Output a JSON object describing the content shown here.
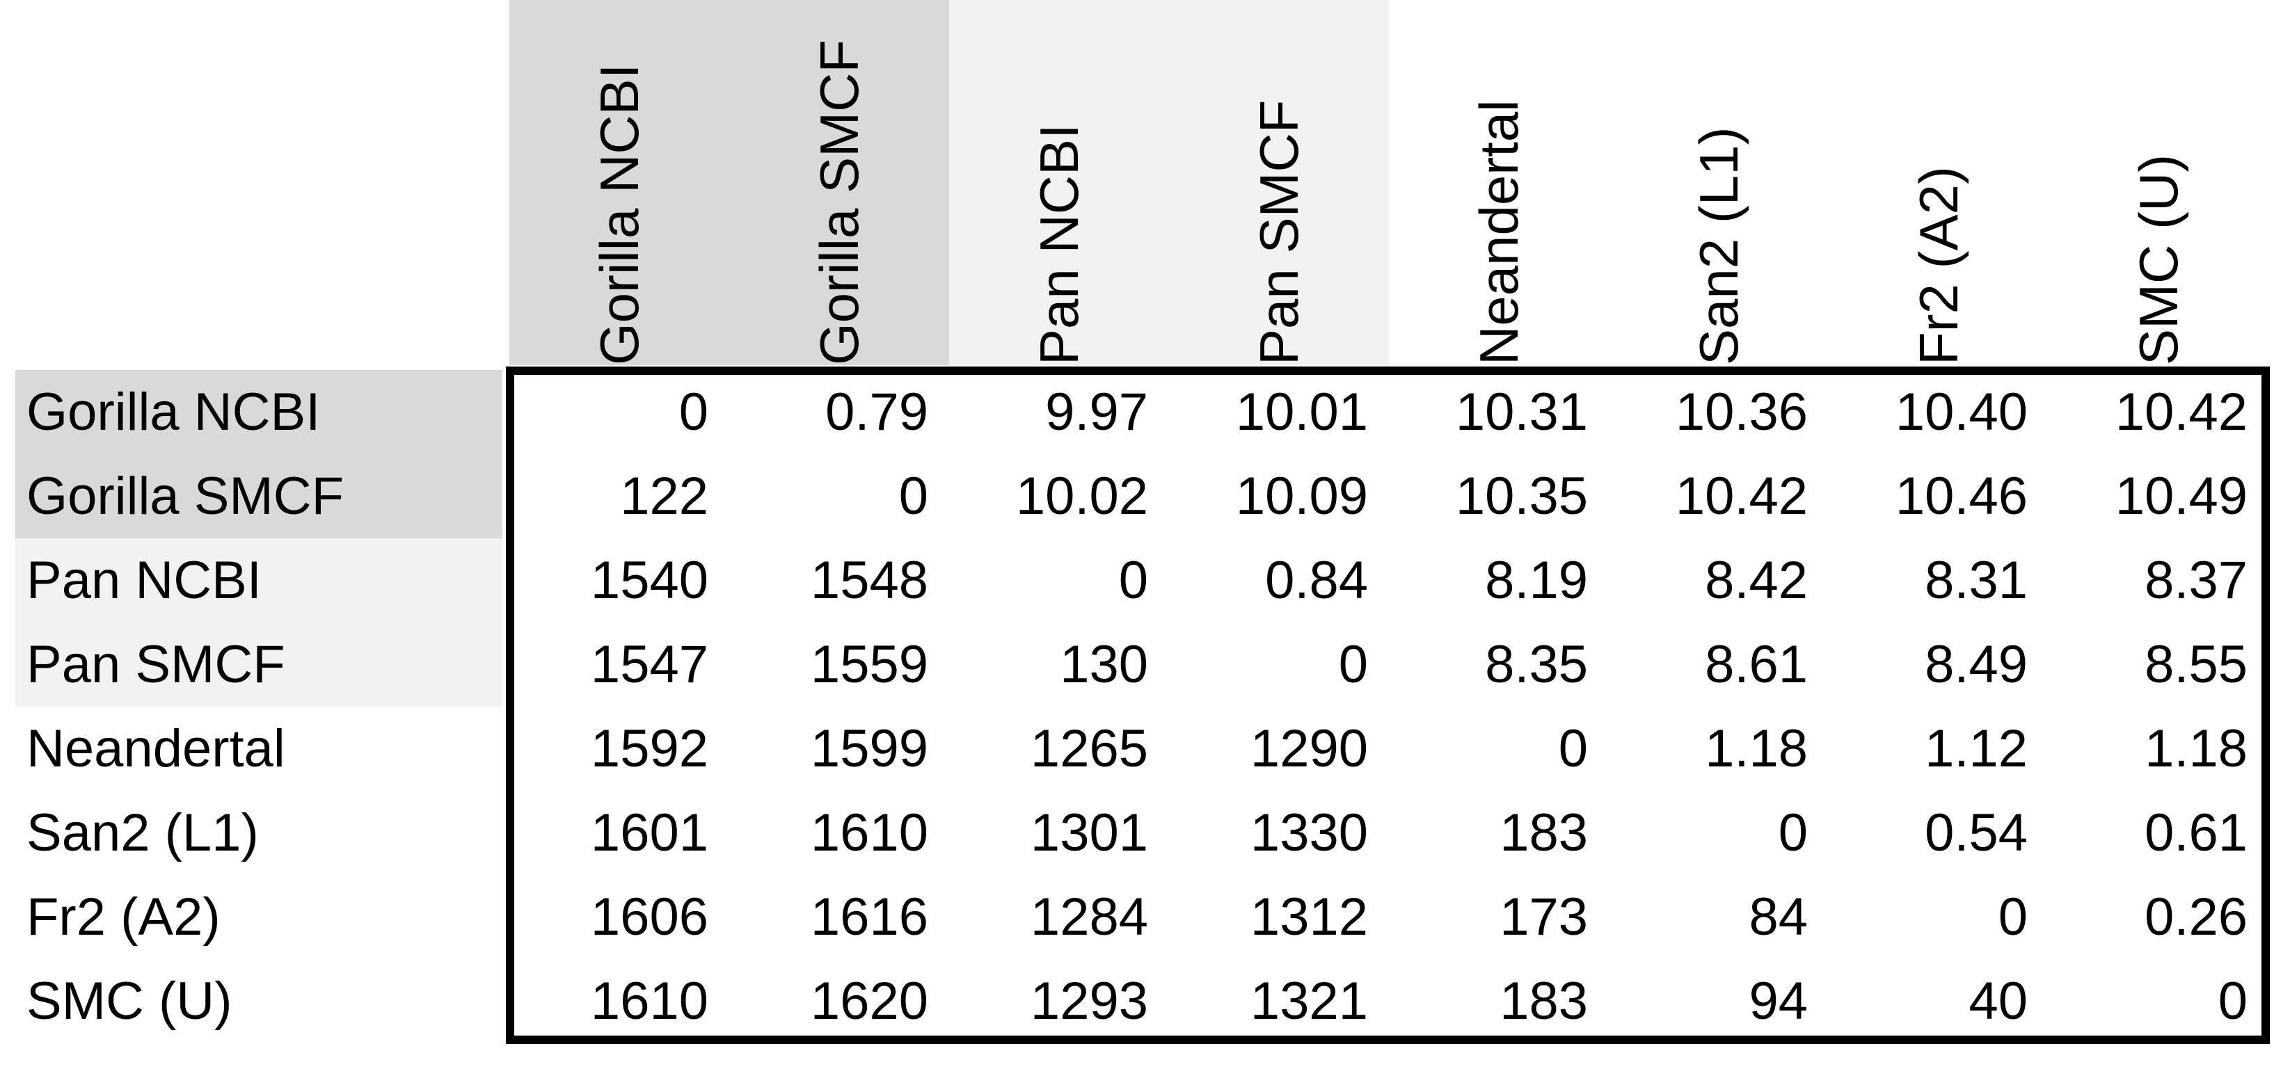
{
  "table": {
    "columns": [
      "Gorilla NCBI",
      "Gorilla SMCF",
      "Pan NCBI",
      "Pan SMCF",
      "Neandertal",
      "San2 (L1)",
      "Fr2 (A2)",
      "SMC (U)"
    ],
    "rows": [
      {
        "label": "Gorilla NCBI",
        "cells": [
          "0",
          "0.79",
          "9.97",
          "10.01",
          "10.31",
          "10.36",
          "10.40",
          "10.42"
        ]
      },
      {
        "label": "Gorilla SMCF",
        "cells": [
          "122",
          "0",
          "10.02",
          "10.09",
          "10.35",
          "10.42",
          "10.46",
          "10.49"
        ]
      },
      {
        "label": "Pan NCBI",
        "cells": [
          "1540",
          "1548",
          "0",
          "0.84",
          "8.19",
          "8.42",
          "8.31",
          "8.37"
        ]
      },
      {
        "label": "Pan SMCF",
        "cells": [
          "1547",
          "1559",
          "130",
          "0",
          "8.35",
          "8.61",
          "8.49",
          "8.55"
        ]
      },
      {
        "label": "Neandertal",
        "cells": [
          "1592",
          "1599",
          "1265",
          "1290",
          "0",
          "1.18",
          "1.12",
          "1.18"
        ]
      },
      {
        "label": "San2 (L1)",
        "cells": [
          "1601",
          "1610",
          "1301",
          "1330",
          "183",
          "0",
          "0.54",
          "0.61"
        ]
      },
      {
        "label": "Fr2 (A2)",
        "cells": [
          "1606",
          "1616",
          "1284",
          "1312",
          "173",
          "84",
          "0",
          "0.26"
        ]
      },
      {
        "label": "SMC (U)",
        "cells": [
          "1610",
          "1620",
          "1293",
          "1321",
          "183",
          "94",
          "40",
          "0"
        ]
      }
    ],
    "colors": {
      "gorilla_shade": "#d9d9d9",
      "pan_shade": "#f2f2f2",
      "border": "#000000"
    }
  }
}
